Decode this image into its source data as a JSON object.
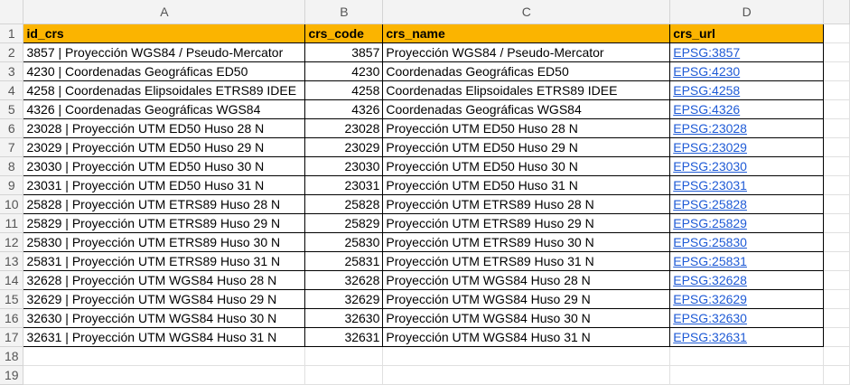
{
  "columns": [
    "A",
    "B",
    "C",
    "D"
  ],
  "header": [
    "id_crs",
    "crs_code",
    "crs_name",
    "crs_url"
  ],
  "rows": [
    {
      "n": "2",
      "id": "3857 | Proyección WGS84 / Pseudo-Mercator",
      "code": "3857",
      "name": "Proyección WGS84 / Pseudo-Mercator",
      "url": "EPSG:3857"
    },
    {
      "n": "3",
      "id": "4230 | Coordenadas Geográficas ED50",
      "code": "4230",
      "name": "Coordenadas Geográficas ED50",
      "url": "EPSG:4230"
    },
    {
      "n": "4",
      "id": "4258 | Coordenadas Elipsoidales ETRS89 IDEE",
      "code": "4258",
      "name": "Coordenadas Elipsoidales ETRS89 IDEE",
      "url": "EPSG:4258"
    },
    {
      "n": "5",
      "id": "4326 | Coordenadas Geográficas WGS84",
      "code": "4326",
      "name": "Coordenadas Geográficas WGS84",
      "url": "EPSG:4326"
    },
    {
      "n": "6",
      "id": "23028 | Proyección UTM ED50 Huso 28 N",
      "code": "23028",
      "name": "Proyección UTM ED50 Huso 28 N",
      "url": "EPSG:23028"
    },
    {
      "n": "7",
      "id": "23029 | Proyección UTM ED50 Huso 29 N",
      "code": "23029",
      "name": "Proyección UTM ED50 Huso 29 N",
      "url": "EPSG:23029"
    },
    {
      "n": "8",
      "id": "23030 | Proyección UTM ED50 Huso 30 N",
      "code": "23030",
      "name": "Proyección UTM ED50 Huso 30 N",
      "url": "EPSG:23030"
    },
    {
      "n": "9",
      "id": "23031 | Proyección UTM ED50 Huso 31 N",
      "code": "23031",
      "name": "Proyección UTM ED50 Huso 31 N",
      "url": "EPSG:23031"
    },
    {
      "n": "10",
      "id": "25828 | Proyección UTM ETRS89 Huso 28 N",
      "code": "25828",
      "name": "Proyección UTM ETRS89 Huso 28 N",
      "url": "EPSG:25828"
    },
    {
      "n": "11",
      "id": "25829 | Proyección UTM ETRS89 Huso 29 N",
      "code": "25829",
      "name": "Proyección UTM ETRS89 Huso 29 N",
      "url": "EPSG:25829"
    },
    {
      "n": "12",
      "id": "25830 | Proyección UTM ETRS89 Huso 30 N",
      "code": "25830",
      "name": "Proyección UTM ETRS89 Huso 30 N",
      "url": "EPSG:25830"
    },
    {
      "n": "13",
      "id": "25831 | Proyección UTM ETRS89 Huso 31 N",
      "code": "25831",
      "name": "Proyección UTM ETRS89 Huso 31 N",
      "url": "EPSG:25831"
    },
    {
      "n": "14",
      "id": "32628 | Proyección UTM WGS84 Huso 28 N",
      "code": "32628",
      "name": "Proyección UTM WGS84 Huso 28 N",
      "url": "EPSG:32628"
    },
    {
      "n": "15",
      "id": "32629 | Proyección UTM WGS84 Huso 29 N",
      "code": "32629",
      "name": "Proyección UTM WGS84 Huso 29 N",
      "url": "EPSG:32629"
    },
    {
      "n": "16",
      "id": "32630 | Proyección UTM WGS84 Huso 30 N",
      "code": "32630",
      "name": "Proyección UTM WGS84 Huso 30 N",
      "url": "EPSG:32630"
    },
    {
      "n": "17",
      "id": "32631 | Proyección UTM WGS84 Huso 31 N",
      "code": "32631",
      "name": "Proyección UTM WGS84 Huso 31 N",
      "url": "EPSG:32631"
    }
  ],
  "header_row_number": "1",
  "empty_rows": [
    "18",
    "19"
  ],
  "colors": {
    "header_fill": "#fbb400",
    "link": "#1f5bd6"
  }
}
